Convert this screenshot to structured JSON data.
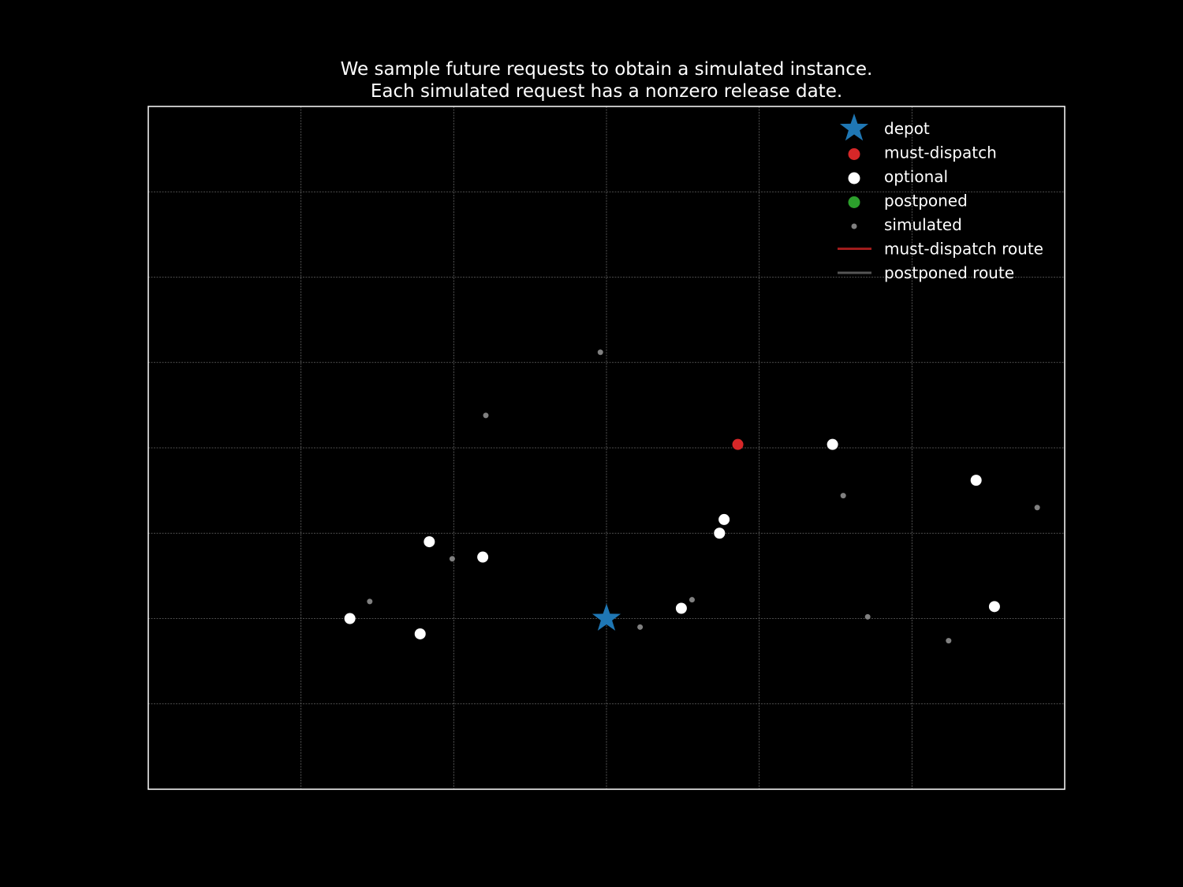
{
  "chart_data": {
    "type": "scatter",
    "title": "We sample future requests to obtain a simulated instance.\nEach simulated request has a nonzero release date.",
    "xlabel": "",
    "ylabel": "",
    "xlim": [
      -3,
      3
    ],
    "ylim": [
      -1,
      3
    ],
    "grid": true,
    "ticks_visible": false,
    "legend_placement": "top-right",
    "colors": {
      "background": "#000000",
      "axes": "#ffffff",
      "grid": "#666666",
      "depot": "#1f77b4",
      "must_dispatch": "#d62728",
      "optional": "#ffffff",
      "postponed": "#2ca02c",
      "simulated": "#808080",
      "must_dispatch_route": "#a01c1c",
      "postponed_route": "#555555"
    },
    "series": [
      {
        "name": "depot",
        "marker": "star",
        "points": [
          [
            0.0,
            0.0
          ]
        ]
      },
      {
        "name": "must-dispatch",
        "marker": "circle",
        "points": [
          [
            0.86,
            1.02
          ]
        ]
      },
      {
        "name": "optional",
        "marker": "circle",
        "points": [
          [
            -1.68,
            0.0
          ],
          [
            -1.22,
            -0.09
          ],
          [
            -1.16,
            0.45
          ],
          [
            -0.81,
            0.36
          ],
          [
            0.49,
            0.06
          ],
          [
            0.74,
            0.5
          ],
          [
            0.77,
            0.58
          ],
          [
            1.48,
            1.02
          ],
          [
            2.42,
            0.81
          ],
          [
            2.54,
            0.07
          ]
        ]
      },
      {
        "name": "postponed",
        "marker": "circle",
        "points": []
      },
      {
        "name": "simulated",
        "marker": "small-circle",
        "points": [
          [
            -1.55,
            0.1
          ],
          [
            -1.01,
            0.35
          ],
          [
            -0.79,
            1.19
          ],
          [
            -0.04,
            1.56
          ],
          [
            0.22,
            -0.05
          ],
          [
            0.56,
            0.11
          ],
          [
            1.55,
            0.72
          ],
          [
            1.71,
            0.01
          ],
          [
            2.24,
            -0.13
          ],
          [
            2.82,
            0.65
          ]
        ]
      },
      {
        "name": "must-dispatch route",
        "marker": "line",
        "points": []
      },
      {
        "name": "postponed route",
        "marker": "line",
        "points": []
      }
    ],
    "legend": [
      {
        "label": "depot",
        "symbol": "star",
        "color_key": "depot"
      },
      {
        "label": "must-dispatch",
        "symbol": "circle",
        "color_key": "must_dispatch"
      },
      {
        "label": "optional",
        "symbol": "circle",
        "color_key": "optional"
      },
      {
        "label": "postponed",
        "symbol": "circle",
        "color_key": "postponed"
      },
      {
        "label": "simulated",
        "symbol": "small-circle",
        "color_key": "simulated"
      },
      {
        "label": "must-dispatch route",
        "symbol": "line",
        "color_key": "must_dispatch_route"
      },
      {
        "label": "postponed route",
        "symbol": "line",
        "color_key": "postponed_route"
      }
    ]
  }
}
